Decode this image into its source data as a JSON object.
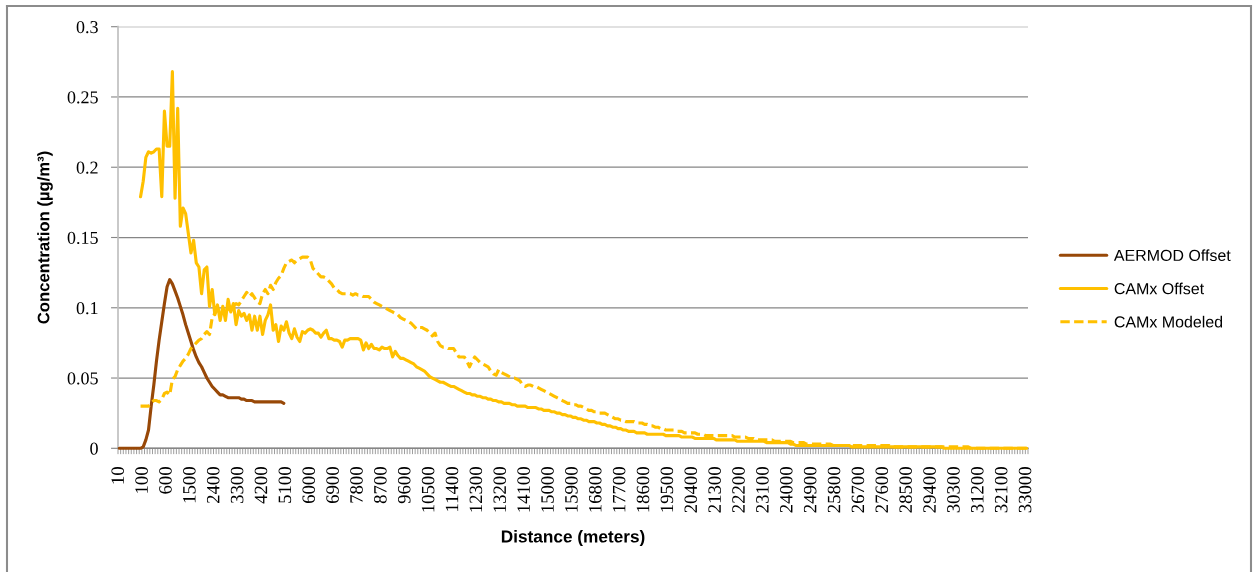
{
  "chart_data": {
    "type": "line",
    "xlabel": "Distance (meters)",
    "ylabel": "Concentration (µg/m³)",
    "categories": [
      "10",
      null,
      null,
      null,
      null,
      null,
      null,
      null,
      null,
      "100",
      null,
      null,
      null,
      null,
      null,
      null,
      null,
      null,
      "600",
      null,
      null,
      null,
      null,
      null,
      null,
      null,
      null,
      "1500",
      null,
      null,
      null,
      null,
      null,
      null,
      null,
      null,
      "2400",
      null,
      null,
      null,
      null,
      null,
      null,
      null,
      null,
      "3300",
      null,
      null,
      null,
      null,
      null,
      null,
      null,
      null,
      "4200",
      null,
      null,
      null,
      null,
      null,
      null,
      null,
      null,
      "5100",
      null,
      null,
      null,
      null,
      null,
      null,
      null,
      null,
      "6000",
      null,
      null,
      null,
      null,
      null,
      null,
      null,
      null,
      "6900",
      null,
      null,
      null,
      null,
      null,
      null,
      null,
      null,
      "7800",
      null,
      null,
      null,
      null,
      null,
      null,
      null,
      null,
      "8700",
      null,
      null,
      null,
      null,
      null,
      null,
      null,
      null,
      "9600",
      null,
      null,
      null,
      null,
      null,
      null,
      null,
      null,
      "10500",
      null,
      null,
      null,
      null,
      null,
      null,
      null,
      null,
      "11400",
      null,
      null,
      null,
      null,
      null,
      null,
      null,
      null,
      "12300",
      null,
      null,
      null,
      null,
      null,
      null,
      null,
      null,
      "13200",
      null,
      null,
      null,
      null,
      null,
      null,
      null,
      null,
      "14100",
      null,
      null,
      null,
      null,
      null,
      null,
      null,
      null,
      "15000",
      null,
      null,
      null,
      null,
      null,
      null,
      null,
      null,
      "15900",
      null,
      null,
      null,
      null,
      null,
      null,
      null,
      null,
      "16800",
      null,
      null,
      null,
      null,
      null,
      null,
      null,
      null,
      "17700",
      null,
      null,
      null,
      null,
      null,
      null,
      null,
      null,
      "18600",
      null,
      null,
      null,
      null,
      null,
      null,
      null,
      null,
      "19500",
      null,
      null,
      null,
      null,
      null,
      null,
      null,
      null,
      "20400",
      null,
      null,
      null,
      null,
      null,
      null,
      null,
      null,
      "21300",
      null,
      null,
      null,
      null,
      null,
      null,
      null,
      null,
      "22200",
      null,
      null,
      null,
      null,
      null,
      null,
      null,
      null,
      "23100",
      null,
      null,
      null,
      null,
      null,
      null,
      null,
      null,
      "24000",
      null,
      null,
      null,
      null,
      null,
      null,
      null,
      null,
      "24900",
      null,
      null,
      null,
      null,
      null,
      null,
      null,
      null,
      "25800",
      null,
      null,
      null,
      null,
      null,
      null,
      null,
      null,
      "26700",
      null,
      null,
      null,
      null,
      null,
      null,
      null,
      null,
      "27600",
      null,
      null,
      null,
      null,
      null,
      null,
      null,
      null,
      "28500",
      null,
      null,
      null,
      null,
      null,
      null,
      null,
      null,
      "29400",
      null,
      null,
      null,
      null,
      null,
      null,
      null,
      null,
      "30300",
      null,
      null,
      null,
      null,
      null,
      null,
      null,
      null,
      "31200",
      null,
      null,
      null,
      null,
      null,
      null,
      null,
      null,
      "32100",
      null,
      null,
      null,
      null,
      null,
      null,
      null,
      null,
      "33000"
    ],
    "series": [
      {
        "name": "AERMOD Offset",
        "color": "#984807",
        "values": [
          0,
          0,
          0,
          0,
          0,
          0,
          0,
          0,
          0,
          0.001,
          0.006,
          0.013,
          0.03,
          0.045,
          0.062,
          0.077,
          0.09,
          0.103,
          0.115,
          0.12,
          0.117,
          0.112,
          0.107,
          0.101,
          0.095,
          0.088,
          0.082,
          0.076,
          0.07,
          0.065,
          0.061,
          0.058,
          0.054,
          0.05,
          0.047,
          0.044,
          0.042,
          0.04,
          0.038,
          0.038,
          0.037,
          0.036,
          0.036,
          0.036,
          0.036,
          0.036,
          0.035,
          0.035,
          0.034,
          0.034,
          0.034,
          0.033,
          0.033,
          0.033,
          0.033,
          0.033,
          0.033,
          0.033,
          0.033,
          0.033,
          0.033,
          0.033,
          0.032,
          null,
          null,
          null,
          null,
          null,
          null,
          null,
          null,
          null,
          null,
          null,
          null,
          null,
          null,
          null,
          null,
          null,
          null,
          null,
          null,
          null,
          null,
          null,
          null,
          null,
          null,
          null,
          null,
          null,
          null,
          null,
          null,
          null,
          null,
          null,
          null,
          null,
          null,
          null,
          null,
          null,
          null,
          null,
          null,
          null,
          null,
          null,
          null,
          null,
          null,
          null,
          null,
          null,
          null,
          null,
          null,
          null,
          null,
          null,
          null,
          null,
          null,
          null,
          null,
          null,
          null,
          null,
          null,
          null,
          null,
          null,
          null,
          null,
          null,
          null,
          null,
          null,
          null,
          null,
          null,
          null,
          null,
          null,
          null,
          null,
          null,
          null,
          null,
          null,
          null,
          null,
          null,
          null,
          null,
          null,
          null,
          null,
          null,
          null,
          null,
          null,
          null,
          null,
          null,
          null,
          null,
          null,
          null,
          null,
          null,
          null,
          null,
          null,
          null,
          null,
          null,
          null,
          null,
          null,
          null,
          null,
          null,
          null,
          null,
          null,
          null,
          null,
          null,
          null,
          null,
          null,
          null,
          null,
          null,
          null,
          null,
          null,
          null,
          null,
          null,
          null,
          null,
          null,
          null,
          null,
          null,
          null,
          null,
          null,
          null,
          null,
          null,
          null,
          null,
          null,
          null,
          null,
          null,
          null,
          null,
          null,
          null,
          null,
          null,
          null,
          null,
          null,
          null,
          null,
          null,
          null,
          null,
          null,
          null,
          null,
          null,
          null,
          null,
          null,
          null,
          null,
          null,
          null,
          null,
          null,
          null,
          null,
          null,
          null,
          null,
          null,
          null,
          null,
          null,
          null,
          null,
          null,
          null,
          null,
          null,
          null,
          null,
          null,
          null,
          null,
          null,
          null,
          null,
          null,
          null,
          null,
          null,
          null,
          null,
          null,
          null,
          null,
          null,
          null,
          null,
          null,
          null,
          null,
          null,
          null,
          null,
          null,
          null,
          null,
          null,
          null,
          null,
          null,
          null,
          null,
          null,
          null,
          null,
          null,
          null,
          null,
          null,
          null,
          null,
          null,
          null,
          null,
          null,
          null,
          null,
          null,
          null,
          null,
          null,
          null,
          null,
          null,
          null,
          null,
          null,
          null,
          null,
          null,
          null,
          null,
          null,
          null,
          null,
          null,
          null,
          null,
          null,
          null,
          null,
          null,
          null,
          null,
          null,
          null,
          null
        ]
      },
      {
        "name": "CAMx Offset",
        "color": "#ffc000",
        "values": [
          null,
          null,
          null,
          null,
          null,
          null,
          null,
          null,
          0.179,
          0.19,
          0.207,
          0.211,
          0.21,
          0.211,
          0.213,
          0.213,
          0.179,
          0.24,
          0.215,
          0.215,
          0.268,
          0.178,
          0.242,
          0.158,
          0.171,
          0.167,
          0.153,
          0.139,
          0.148,
          0.132,
          0.129,
          0.11,
          0.127,
          0.129,
          0.101,
          0.113,
          0.095,
          0.102,
          0.091,
          0.101,
          0.091,
          0.106,
          0.097,
          0.103,
          0.088,
          0.098,
          0.094,
          0.096,
          0.091,
          0.095,
          0.084,
          0.094,
          0.084,
          0.094,
          0.081,
          0.091,
          0.095,
          0.102,
          0.084,
          0.088,
          0.076,
          0.087,
          0.084,
          0.09,
          0.082,
          0.078,
          0.085,
          0.079,
          0.076,
          0.083,
          0.082,
          0.084,
          0.085,
          0.084,
          0.082,
          0.082,
          0.079,
          0.082,
          0.084,
          0.078,
          0.078,
          0.077,
          0.077,
          0.076,
          0.072,
          0.077,
          0.077,
          0.078,
          0.078,
          0.078,
          0.078,
          0.077,
          0.07,
          0.075,
          0.071,
          0.074,
          0.071,
          0.071,
          0.07,
          0.072,
          0.071,
          0.071,
          0.072,
          0.065,
          0.069,
          0.066,
          0.064,
          0.064,
          0.063,
          0.062,
          0.061,
          0.06,
          0.058,
          0.057,
          0.056,
          0.055,
          0.053,
          0.051,
          0.05,
          0.049,
          0.048,
          0.047,
          0.047,
          0.046,
          0.045,
          0.044,
          0.044,
          0.043,
          0.042,
          0.041,
          0.04,
          0.039,
          0.039,
          0.038,
          0.038,
          0.037,
          0.037,
          0.036,
          0.036,
          0.035,
          0.035,
          0.034,
          0.034,
          0.033,
          0.033,
          0.032,
          0.032,
          0.032,
          0.031,
          0.031,
          0.03,
          0.03,
          0.03,
          0.03,
          0.029,
          0.029,
          0.029,
          0.029,
          0.028,
          0.028,
          0.027,
          0.027,
          0.027,
          0.026,
          0.026,
          0.025,
          0.025,
          0.024,
          0.024,
          0.023,
          0.023,
          0.022,
          0.022,
          0.021,
          0.021,
          0.02,
          0.02,
          0.019,
          0.019,
          0.019,
          0.018,
          0.018,
          0.017,
          0.017,
          0.016,
          0.016,
          0.015,
          0.015,
          0.014,
          0.014,
          0.013,
          0.013,
          0.012,
          0.012,
          0.012,
          0.011,
          0.011,
          0.011,
          0.011,
          0.01,
          0.01,
          0.01,
          0.01,
          0.01,
          0.01,
          0.01,
          0.009,
          0.009,
          0.009,
          0.009,
          0.009,
          0.009,
          0.008,
          0.008,
          0.008,
          0.008,
          0.008,
          0.007,
          0.007,
          0.007,
          0.007,
          0.007,
          0.007,
          0.007,
          0.007,
          0.006,
          0.006,
          0.006,
          0.006,
          0.006,
          0.006,
          0.006,
          0.006,
          0.005,
          0.005,
          0.005,
          0.005,
          0.005,
          0.005,
          0.005,
          0.005,
          0.005,
          0.005,
          0.005,
          0.004,
          0.004,
          0.004,
          0.004,
          0.004,
          0.004,
          0.004,
          0.004,
          0.004,
          0.003,
          0.003,
          0.002,
          0.002,
          0.002,
          0.002,
          0.002,
          0.002,
          0.002,
          0.002,
          0.002,
          0.002,
          0.002,
          0.002,
          0.002,
          0.002,
          0.002,
          0.002,
          0.002,
          0.002,
          0.002,
          0.002,
          0.002,
          0.001,
          0.001,
          0.001,
          0.001,
          0.001,
          0.001,
          0.001,
          0.001,
          0.001,
          0.001,
          0.001,
          0.001,
          0.001,
          0.001,
          0.001,
          0.001,
          0.001,
          0.001,
          0.001,
          0.001,
          0.001,
          0.001,
          0.001,
          0.001,
          0.001,
          0.001,
          0.001,
          0.001,
          0.001,
          0.001,
          0.001,
          0.001,
          0.001,
          0.001,
          0.001,
          0,
          0,
          0,
          0,
          0,
          0,
          0,
          0,
          0,
          0,
          0,
          0,
          0,
          0,
          0,
          0,
          0,
          0,
          0,
          0,
          0,
          0,
          0,
          0,
          0,
          0,
          0,
          0,
          0,
          0,
          0,
          0
        ]
      },
      {
        "name": "CAMx Modeled",
        "color": "#ffc000",
        "line_style": "dashed",
        "values": [
          null,
          null,
          null,
          null,
          null,
          null,
          null,
          null,
          0.03,
          0.03,
          0.03,
          0.03,
          0.032,
          0.034,
          0.034,
          0.033,
          0.035,
          0.039,
          0.04,
          0.038,
          0.049,
          0.051,
          0.056,
          0.059,
          0.062,
          0.064,
          0.067,
          0.071,
          0.073,
          0.075,
          0.077,
          0.078,
          0.081,
          0.083,
          0.081,
          0.093,
          0.096,
          0.099,
          0.1,
          0.099,
          0.097,
          0.099,
          0.1,
          0.101,
          0.103,
          0.102,
          0.105,
          0.108,
          0.111,
          0.108,
          0.11,
          0.107,
          0.104,
          0.103,
          0.11,
          0.113,
          0.11,
          0.116,
          0.113,
          0.118,
          0.121,
          0.123,
          0.128,
          0.132,
          0.133,
          0.134,
          0.132,
          0.134,
          0.135,
          0.136,
          0.136,
          0.136,
          0.134,
          0.128,
          0.126,
          0.124,
          0.122,
          0.122,
          0.121,
          0.119,
          0.117,
          0.114,
          0.113,
          0.111,
          0.11,
          0.11,
          0.11,
          0.11,
          0.109,
          0.11,
          0.109,
          0.109,
          0.108,
          0.108,
          0.108,
          0.106,
          0.104,
          0.103,
          0.102,
          0.101,
          0.1,
          0.099,
          0.098,
          0.097,
          0.096,
          0.095,
          0.093,
          0.092,
          0.091,
          0.09,
          0.089,
          0.087,
          0.085,
          0.086,
          0.086,
          0.085,
          0.084,
          0.082,
          0.08,
          0.082,
          0.076,
          0.073,
          0.072,
          0.072,
          0.071,
          0.071,
          0.071,
          0.068,
          0.065,
          0.065,
          0.065,
          0.062,
          0.058,
          0.062,
          0.065,
          0.063,
          0.061,
          0.06,
          0.059,
          0.058,
          0.055,
          0.053,
          0.052,
          0.056,
          0.054,
          0.053,
          0.052,
          0.051,
          0.05,
          0.05,
          0.049,
          0.048,
          0.045,
          0.044,
          0.045,
          0.045,
          0.044,
          0.044,
          0.043,
          0.042,
          0.041,
          0.04,
          0.039,
          0.038,
          0.037,
          0.036,
          0.035,
          0.034,
          0.033,
          0.032,
          0.032,
          0.031,
          0.031,
          0.03,
          0.03,
          0.029,
          0.028,
          0.027,
          0.027,
          0.026,
          0.026,
          0.025,
          0.025,
          0.025,
          0.024,
          0.023,
          0.022,
          0.021,
          0.021,
          0.02,
          0.02,
          0.019,
          0.019,
          0.019,
          0.019,
          0.018,
          0.018,
          0.018,
          0.017,
          0.017,
          0.016,
          0.016,
          0.015,
          0.015,
          0.014,
          0.014,
          0.013,
          0.013,
          0.013,
          0.013,
          0.012,
          0.012,
          0.012,
          0.011,
          0.011,
          0.011,
          0.011,
          0.011,
          0.01,
          0.01,
          0.01,
          0.009,
          0.009,
          0.009,
          0.009,
          0.009,
          0.009,
          0.009,
          0.009,
          0.009,
          0.009,
          0.009,
          0.008,
          0.008,
          0.008,
          0.008,
          0.008,
          0.007,
          0.007,
          0.007,
          0.006,
          0.006,
          0.006,
          0.006,
          0.006,
          0.006,
          0.006,
          0.005,
          0.005,
          0.005,
          0.005,
          0.005,
          0.005,
          0.005,
          0.004,
          0.004,
          0.004,
          0.004,
          0.004,
          0.003,
          0.003,
          0.003,
          0.003,
          0.003,
          0.003,
          0.003,
          0.003,
          0.003,
          0.003,
          0.002,
          0.002,
          0.002,
          0.002,
          0.002,
          0.002,
          0.002,
          0.002,
          0.002,
          0.002,
          0.002,
          0.002,
          0.002,
          0.002,
          0.002,
          0.002,
          0.002,
          0.002,
          0.002,
          0.002,
          0.002,
          0.002,
          0.001,
          0.001,
          0.001,
          0.001,
          0.001,
          0.001,
          0.001,
          0.001,
          0.001,
          0.001,
          0.001,
          0.001,
          0.001,
          0.001,
          0.001,
          0.001,
          0.001,
          0.001,
          0.001,
          0.001,
          0.001,
          0.001,
          0.001,
          0.001,
          0.001,
          0.001,
          0.001,
          0.001,
          0.001,
          0.001,
          0,
          0,
          0,
          0,
          0,
          0,
          0,
          0,
          0,
          0,
          0,
          0,
          0,
          0,
          0,
          0,
          0,
          0,
          0,
          0,
          0,
          0
        ]
      }
    ],
    "ylim": [
      0,
      0.3
    ],
    "yticks": [
      0,
      0.05,
      0.1,
      0.15,
      0.2,
      0.25,
      0.3
    ],
    "grid": "y",
    "legend": "right",
    "line_style": "solid"
  }
}
